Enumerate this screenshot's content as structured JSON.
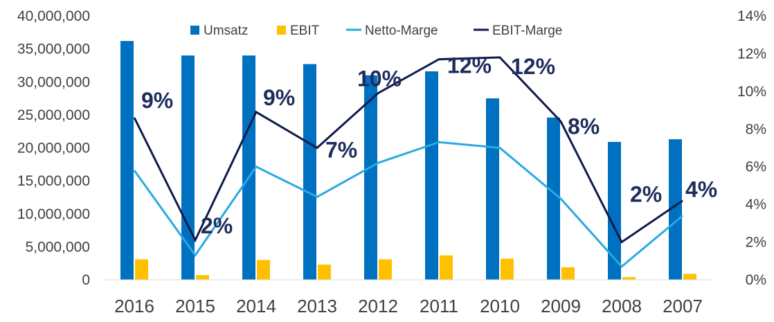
{
  "chart_data": {
    "type": "bar+line",
    "title": "",
    "xlabel": "",
    "ylabel": "",
    "y2label": "",
    "categories": [
      "2016",
      "2015",
      "2014",
      "2013",
      "2012",
      "2011",
      "2010",
      "2009",
      "2008",
      "2007"
    ],
    "ylim": [
      0,
      40000000
    ],
    "yticks": [
      "0",
      "5,000,000",
      "10,000,000",
      "15,000,000",
      "20,000,000",
      "25,000,000",
      "30,000,000",
      "35,000,000",
      "40,000,000"
    ],
    "y2lim": [
      0,
      0.14
    ],
    "y2ticks": [
      "0%",
      "2%",
      "4%",
      "6%",
      "8%",
      "10%",
      "12%",
      "14%"
    ],
    "grid": false,
    "legend_position": "top",
    "series": [
      {
        "name": "Umsatz",
        "type": "bar",
        "axis": "left",
        "color": "#0070c0",
        "values": [
          36200000,
          34000000,
          34000000,
          32700000,
          31000000,
          31600000,
          27500000,
          24600000,
          20900000,
          21300000
        ]
      },
      {
        "name": "EBIT",
        "type": "bar",
        "axis": "left",
        "color": "#ffc000",
        "values": [
          3100000,
          700000,
          3000000,
          2300000,
          3100000,
          3700000,
          3200000,
          1900000,
          400000,
          900000
        ]
      },
      {
        "name": "Netto-Marge",
        "type": "line",
        "axis": "right",
        "color": "#29aae1",
        "values": [
          0.058,
          0.013,
          0.06,
          0.044,
          0.062,
          0.073,
          0.07,
          0.043,
          0.007,
          0.034
        ]
      },
      {
        "name": "EBIT-Marge",
        "type": "line",
        "axis": "right",
        "color": "#0d1b4c",
        "values": [
          0.086,
          0.021,
          0.089,
          0.07,
          0.099,
          0.117,
          0.118,
          0.084,
          0.02,
          0.042
        ],
        "labels": [
          "9%",
          "2%",
          "9%",
          "7%",
          "10%",
          "12%",
          "12%",
          "8%",
          "2%",
          "4%"
        ]
      }
    ]
  }
}
